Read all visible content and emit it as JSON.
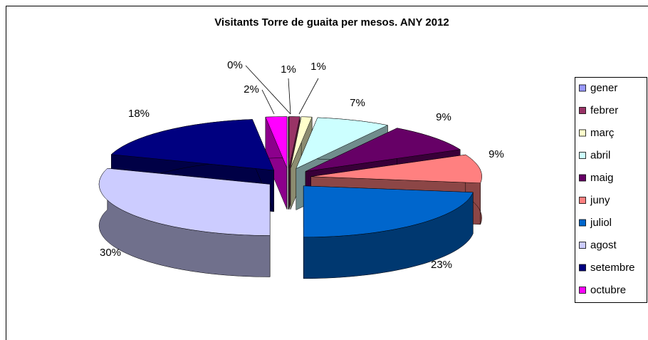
{
  "chart_data": {
    "type": "pie3d",
    "title": "Visitants Torre de guaita per mesos. ANY 2012",
    "categories": [
      "gener",
      "febrer",
      "març",
      "abril",
      "maig",
      "juny",
      "juliol",
      "agost",
      "setembre",
      "octubre"
    ],
    "values": [
      0,
      1,
      1,
      7,
      9,
      9,
      23,
      30,
      18,
      2
    ],
    "value_labels": [
      "0%",
      "1%",
      "1%",
      "7%",
      "9%",
      "9%",
      "23%",
      "30%",
      "18%",
      "2%"
    ],
    "colors": [
      "#9999ff",
      "#993366",
      "#ffffcc",
      "#ccffff",
      "#660066",
      "#ff8080",
      "#0066cc",
      "#ccccff",
      "#000080",
      "#ff00ff"
    ],
    "legend": "right"
  }
}
